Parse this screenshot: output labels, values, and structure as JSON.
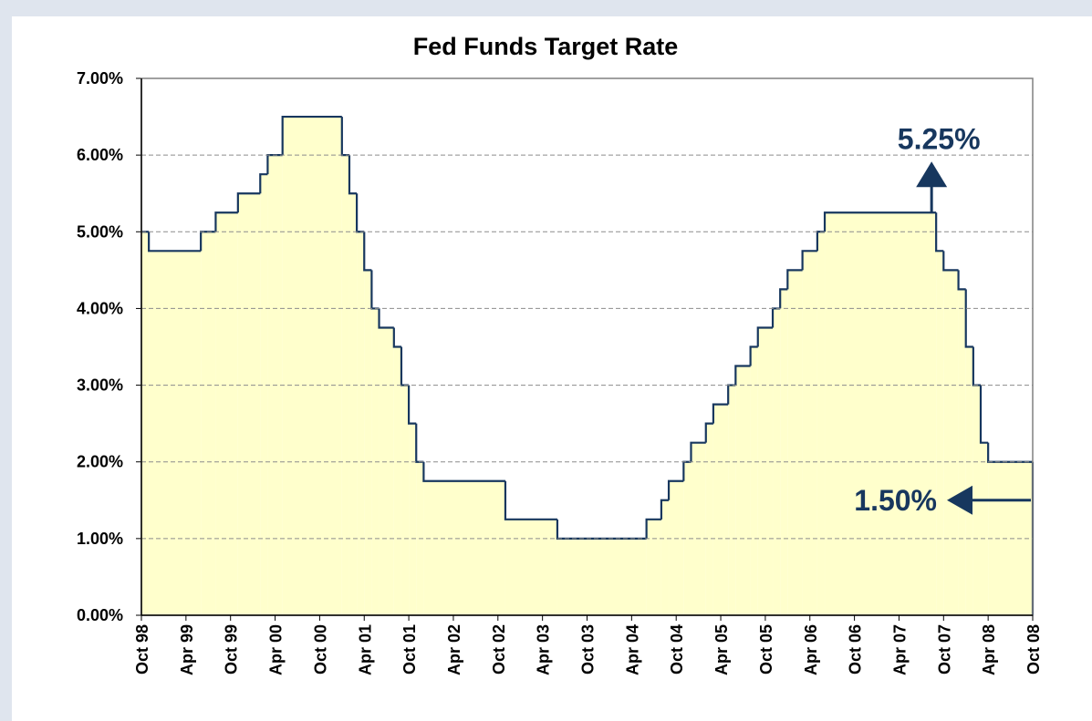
{
  "chart_data": {
    "type": "step-area",
    "title": "Fed Funds Target Rate",
    "series": [
      {
        "name": "Fed Funds Target Rate",
        "color": "#17375e",
        "fill": "#ffffcc",
        "x": [
          "Oct 98",
          "Nov 98",
          "Jun 99",
          "Aug 99",
          "Nov 99",
          "Feb 00",
          "Mar 00",
          "May 00",
          "Jan 01",
          "Feb 01",
          "Mar 01",
          "Apr 01",
          "May 01",
          "Jun 01",
          "Aug 01",
          "Sep 01",
          "Oct 01",
          "Nov 01",
          "Dec 01",
          "Nov 02",
          "Jun 03",
          "Jun 04",
          "Aug 04",
          "Sep 04",
          "Nov 04",
          "Dec 04",
          "Feb 05",
          "Mar 05",
          "May 05",
          "Jun 05",
          "Aug 05",
          "Sep 05",
          "Nov 05",
          "Dec 05",
          "Jan 06",
          "Mar 06",
          "May 06",
          "Jun 06",
          "Sep 07",
          "Oct 07",
          "Dec 07",
          "Jan 08",
          "Feb 08",
          "Mar 08",
          "Apr 08",
          "Oct 08"
        ],
        "values": [
          5.0,
          4.75,
          5.0,
          5.25,
          5.5,
          5.75,
          6.0,
          6.5,
          6.0,
          5.5,
          5.0,
          4.5,
          4.0,
          3.75,
          3.5,
          3.0,
          2.5,
          2.0,
          1.75,
          1.25,
          1.0,
          1.25,
          1.5,
          1.75,
          2.0,
          2.25,
          2.5,
          2.75,
          3.0,
          3.25,
          3.5,
          3.75,
          4.0,
          4.25,
          4.5,
          4.75,
          5.0,
          5.25,
          4.75,
          4.5,
          4.25,
          3.5,
          3.0,
          2.25,
          2.0,
          1.5
        ]
      }
    ],
    "xlim": [
      "Oct 98",
      "Oct 08"
    ],
    "xticks": [
      "Oct 98",
      "Apr 99",
      "Oct 99",
      "Apr 00",
      "Oct 00",
      "Apr 01",
      "Oct 01",
      "Apr 02",
      "Oct 02",
      "Apr 03",
      "Oct 03",
      "Apr 04",
      "Oct 04",
      "Apr 05",
      "Oct 05",
      "Apr 06",
      "Oct 06",
      "Apr 07",
      "Oct 07",
      "Apr 08",
      "Oct 08"
    ],
    "ylim": [
      0,
      7
    ],
    "yticks": [
      {
        "value": 0,
        "label": "0.00%"
      },
      {
        "value": 1,
        "label": "1.00%"
      },
      {
        "value": 2,
        "label": "2.00%"
      },
      {
        "value": 3,
        "label": "3.00%"
      },
      {
        "value": 4,
        "label": "4.00%"
      },
      {
        "value": 5,
        "label": "5.00%"
      },
      {
        "value": 6,
        "label": "6.00%"
      },
      {
        "value": 7,
        "label": "7.00%"
      }
    ],
    "grid": true,
    "annotations": [
      {
        "text": "5.25%",
        "x": "Sep 07",
        "y": 5.25
      },
      {
        "text": "1.50%",
        "x": "Oct 08",
        "y": 1.5
      }
    ]
  }
}
